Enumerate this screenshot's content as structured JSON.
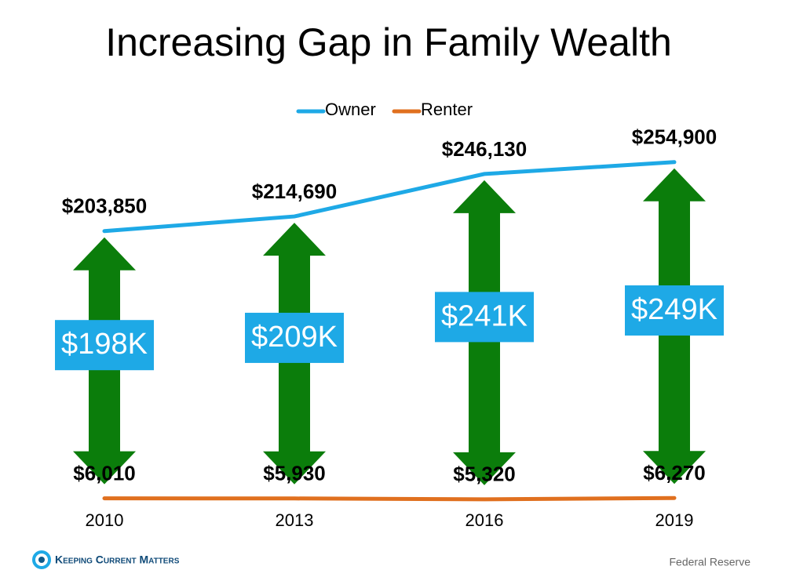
{
  "chart_data": {
    "type": "line",
    "title": "Increasing Gap in Family Wealth",
    "categories": [
      "2010",
      "2013",
      "2016",
      "2019"
    ],
    "series": [
      {
        "name": "Owner",
        "color": "#1ea9e6",
        "values": [
          203850,
          214690,
          246130,
          254900
        ],
        "value_labels": [
          "$203,850",
          "$214,690",
          "$246,130",
          "$254,900"
        ]
      },
      {
        "name": "Renter",
        "color": "#e0701f",
        "values": [
          6010,
          5930,
          5320,
          6270
        ],
        "value_labels": [
          "$6,010",
          "$5,930",
          "$5,320",
          "$6,270"
        ]
      }
    ],
    "gap_labels": [
      "$198K",
      "$209K",
      "$241K",
      "$249K"
    ],
    "gap_color": "#0b7d0b",
    "ylim": [
      0,
      260000
    ]
  },
  "footer": {
    "logo": "Keeping Current Matters",
    "source": "Federal Reserve"
  }
}
